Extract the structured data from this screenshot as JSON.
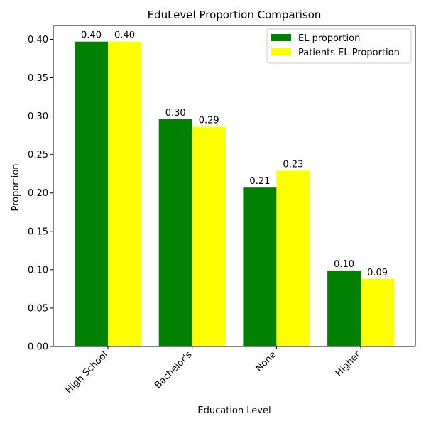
{
  "chart_data": {
    "type": "bar",
    "title": "EduLevel Proportion Comparison",
    "xlabel": "Education Level",
    "ylabel": "Proportion",
    "categories": [
      "High School",
      "Bachelor's",
      "None",
      "Higher"
    ],
    "series": [
      {
        "name": "EL proportion",
        "color": "#008000",
        "values": [
          0.397,
          0.296,
          0.207,
          0.099
        ],
        "labels": [
          "0.40",
          "0.30",
          "0.21",
          "0.10"
        ]
      },
      {
        "name": "Patients EL Proportion",
        "color": "#ffff00",
        "values": [
          0.397,
          0.286,
          0.229,
          0.088
        ],
        "labels": [
          "0.40",
          "0.29",
          "0.23",
          "0.09"
        ]
      }
    ],
    "ylim": [
      0,
      0.418
    ],
    "yticks": [
      0.0,
      0.05,
      0.1,
      0.15,
      0.2,
      0.25,
      0.3,
      0.35,
      0.4
    ],
    "ytick_labels": [
      "0.00",
      "0.05",
      "0.10",
      "0.15",
      "0.20",
      "0.25",
      "0.30",
      "0.35",
      "0.40"
    ],
    "legend_position": "top-right",
    "grid": false
  }
}
